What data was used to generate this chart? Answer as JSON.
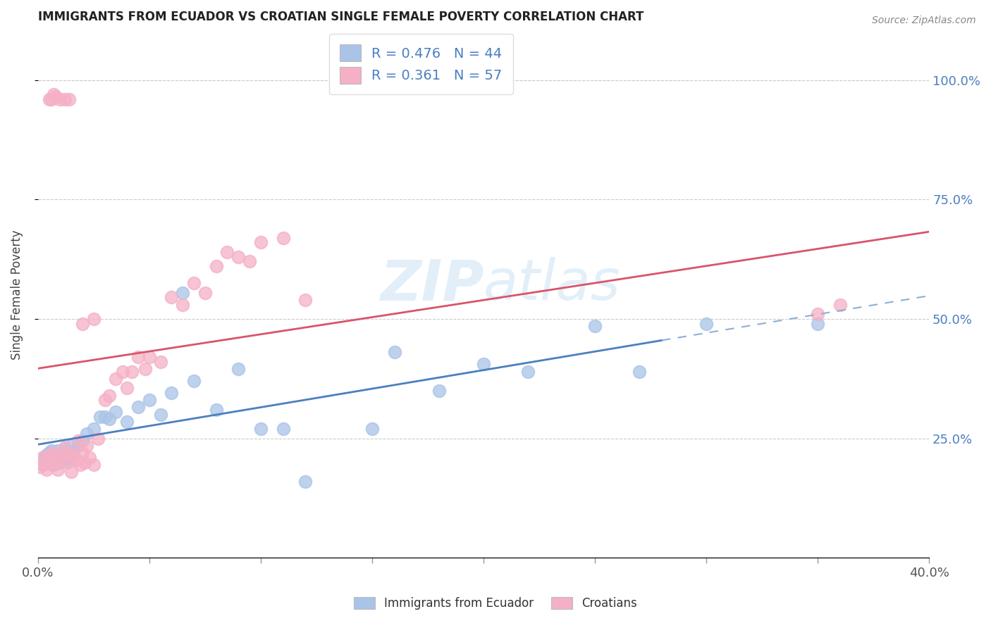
{
  "title": "IMMIGRANTS FROM ECUADOR VS CROATIAN SINGLE FEMALE POVERTY CORRELATION CHART",
  "source": "Source: ZipAtlas.com",
  "ylabel": "Single Female Poverty",
  "legend_label1": "Immigrants from Ecuador",
  "legend_label2": "Croatians",
  "R1": 0.476,
  "N1": 44,
  "R2": 0.361,
  "N2": 57,
  "color_blue": "#aac4e8",
  "color_pink": "#f5b0c5",
  "line_blue": "#4a7fc1",
  "line_pink": "#d9546a",
  "line_blue_dash": "#8ab0d8",
  "watermark_color": "#d0e5f5",
  "blue_x": [
    0.002,
    0.003,
    0.004,
    0.005,
    0.006,
    0.007,
    0.008,
    0.009,
    0.01,
    0.011,
    0.012,
    0.013,
    0.014,
    0.015,
    0.016,
    0.018,
    0.02,
    0.022,
    0.025,
    0.028,
    0.03,
    0.032,
    0.035,
    0.04,
    0.045,
    0.05,
    0.055,
    0.06,
    0.065,
    0.07,
    0.08,
    0.09,
    0.1,
    0.11,
    0.12,
    0.15,
    0.16,
    0.18,
    0.2,
    0.22,
    0.25,
    0.27,
    0.3,
    0.35
  ],
  "blue_y": [
    0.195,
    0.21,
    0.215,
    0.22,
    0.225,
    0.195,
    0.215,
    0.225,
    0.2,
    0.215,
    0.23,
    0.21,
    0.205,
    0.235,
    0.215,
    0.235,
    0.245,
    0.26,
    0.27,
    0.295,
    0.295,
    0.29,
    0.305,
    0.285,
    0.315,
    0.33,
    0.3,
    0.345,
    0.555,
    0.37,
    0.31,
    0.395,
    0.27,
    0.27,
    0.16,
    0.27,
    0.43,
    0.35,
    0.405,
    0.39,
    0.485,
    0.39,
    0.49,
    0.49
  ],
  "pink_x": [
    0.001,
    0.002,
    0.003,
    0.004,
    0.005,
    0.006,
    0.007,
    0.008,
    0.009,
    0.01,
    0.011,
    0.012,
    0.013,
    0.014,
    0.015,
    0.016,
    0.017,
    0.018,
    0.019,
    0.02,
    0.021,
    0.022,
    0.023,
    0.025,
    0.027,
    0.03,
    0.032,
    0.035,
    0.038,
    0.04,
    0.042,
    0.045,
    0.048,
    0.05,
    0.055,
    0.06,
    0.065,
    0.07,
    0.075,
    0.08,
    0.085,
    0.09,
    0.095,
    0.1,
    0.11,
    0.12,
    0.005,
    0.006,
    0.007,
    0.008,
    0.01,
    0.012,
    0.014,
    0.02,
    0.025,
    0.35,
    0.36
  ],
  "pink_y": [
    0.19,
    0.21,
    0.2,
    0.185,
    0.215,
    0.195,
    0.22,
    0.2,
    0.185,
    0.205,
    0.215,
    0.23,
    0.2,
    0.215,
    0.18,
    0.215,
    0.205,
    0.245,
    0.195,
    0.22,
    0.2,
    0.235,
    0.21,
    0.195,
    0.25,
    0.33,
    0.34,
    0.375,
    0.39,
    0.355,
    0.39,
    0.42,
    0.395,
    0.42,
    0.41,
    0.545,
    0.53,
    0.575,
    0.555,
    0.61,
    0.64,
    0.63,
    0.62,
    0.66,
    0.67,
    0.54,
    0.96,
    0.96,
    0.97,
    0.965,
    0.96,
    0.96,
    0.96,
    0.49,
    0.5,
    0.51,
    0.53
  ],
  "xlim": [
    0.0,
    0.4
  ],
  "ylim": [
    0.0,
    1.1
  ],
  "ytick_vals": [
    0.25,
    0.5,
    0.75,
    1.0
  ],
  "ytick_labels": [
    "25.0%",
    "50.0%",
    "75.0%",
    "100.0%"
  ],
  "num_xticks": 9,
  "background_color": "#ffffff",
  "grid_color": "#cccccc",
  "title_color": "#222222",
  "source_color": "#888888",
  "ylabel_color": "#444444",
  "xtick_color": "#555555",
  "right_ytick_color": "#4a7fc1"
}
